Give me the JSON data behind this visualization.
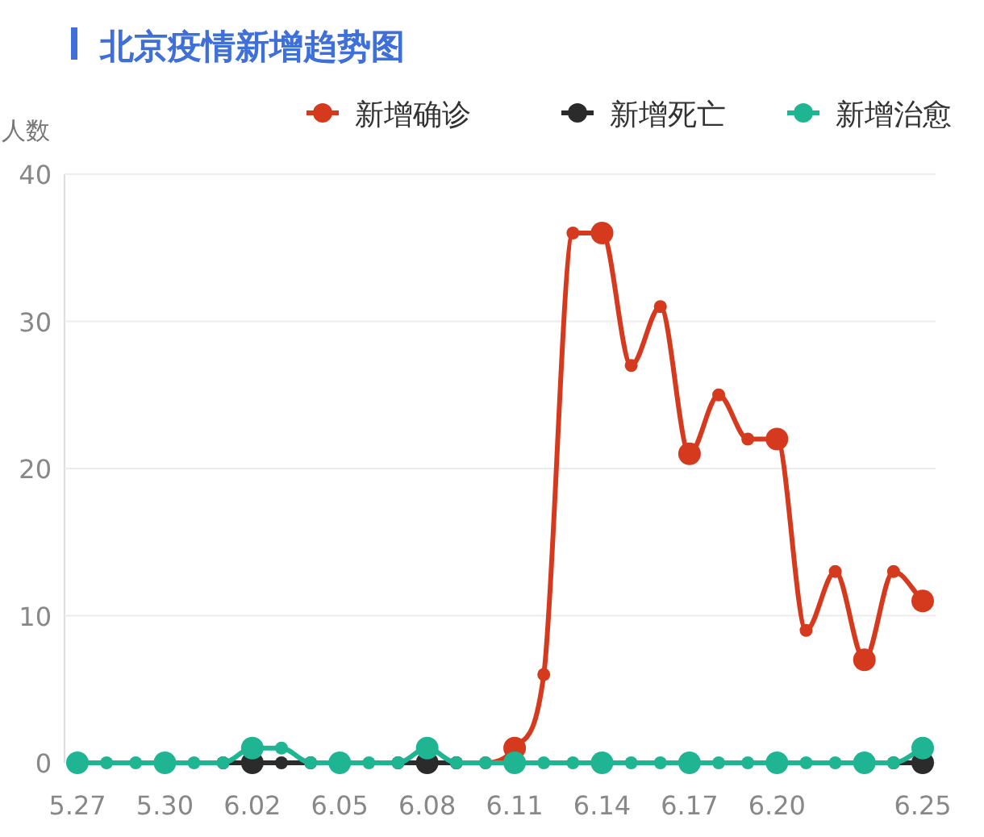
{
  "chart_data": {
    "type": "line",
    "title": "北京疫情新增趋势图",
    "ylabel": "人数",
    "categories": [
      "5.27",
      null,
      null,
      "5.30",
      null,
      null,
      "6.02",
      null,
      null,
      "6.05",
      null,
      null,
      "6.08",
      null,
      null,
      "6.11",
      null,
      null,
      "6.14",
      null,
      null,
      "6.17",
      null,
      null,
      "6.20",
      null,
      null,
      null,
      null,
      "6.25"
    ],
    "series": [
      {
        "name": "新增确诊",
        "color": "#d63a1e",
        "values": [
          null,
          null,
          null,
          null,
          null,
          null,
          null,
          null,
          null,
          null,
          null,
          null,
          null,
          0,
          0,
          1,
          6,
          36,
          36,
          27,
          31,
          21,
          25,
          22,
          22,
          9,
          13,
          7,
          13,
          11
        ]
      },
      {
        "name": "新增死亡",
        "color": "#2b2b2b",
        "values": [
          null,
          null,
          null,
          null,
          null,
          0,
          0,
          0,
          0,
          null,
          null,
          0,
          0,
          0,
          null,
          null,
          null,
          null,
          null,
          null,
          null,
          null,
          null,
          null,
          null,
          null,
          null,
          null,
          0,
          0
        ]
      },
      {
        "name": "新增治愈",
        "color": "#1fb592",
        "values": [
          0,
          0,
          0,
          0,
          0,
          0,
          1,
          1,
          0,
          0,
          0,
          0,
          1,
          0,
          0,
          0,
          0,
          0,
          0,
          0,
          0,
          0,
          0,
          0,
          0,
          0,
          0,
          0,
          0,
          1
        ]
      }
    ],
    "ylim": [
      0,
      40
    ],
    "yticks": [
      0,
      10,
      20,
      30,
      40
    ],
    "grid": "y",
    "legend": "top right",
    "marker": "circle"
  }
}
